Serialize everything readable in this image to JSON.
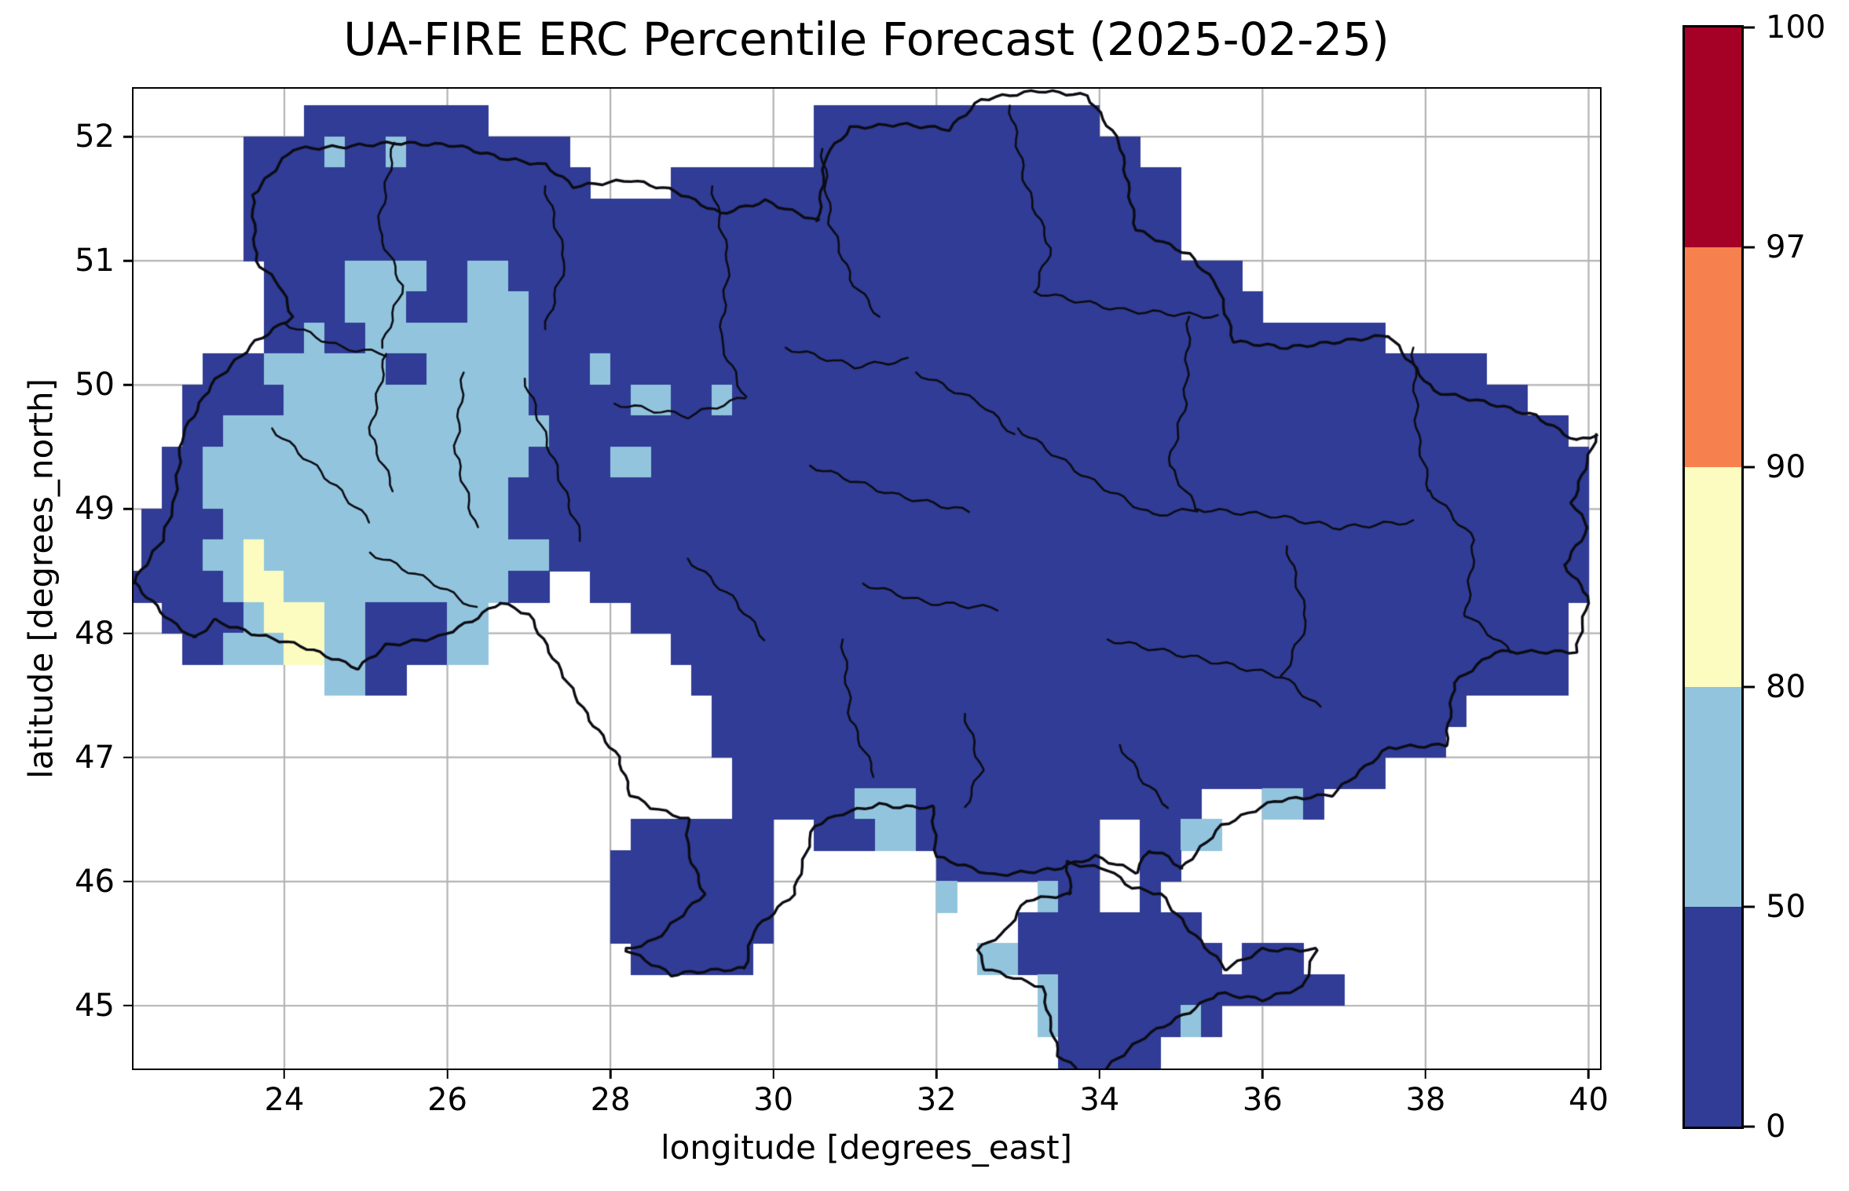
{
  "title": "UA-FIRE ERC Percentile Forecast (2025-02-25)",
  "axes": {
    "xlabel": "longitude [degrees_east]",
    "ylabel": "latitude [degrees_north]",
    "x_tick_labels": [
      "24",
      "26",
      "28",
      "30",
      "32",
      "34",
      "36",
      "38",
      "40"
    ],
    "y_tick_labels": [
      "45",
      "46",
      "47",
      "48",
      "49",
      "50",
      "51",
      "52"
    ]
  },
  "style": {
    "grid_color": "#b3b3b3",
    "border_color": "#0c0c14",
    "background": "#ffffff",
    "cell_colors": {
      "b": "#303c95",
      "c": "#92c5dd",
      "y": "#fcfcc0"
    }
  },
  "chart_data": {
    "type": "heatmap",
    "title": "UA-FIRE ERC Percentile Forecast (2025-02-25)",
    "xlabel": "longitude [degrees_east]",
    "ylabel": "latitude [degrees_north]",
    "x_ticks": [
      24,
      26,
      28,
      30,
      32,
      34,
      36,
      38,
      40
    ],
    "y_ticks": [
      45,
      46,
      47,
      48,
      49,
      50,
      51,
      52
    ],
    "lon_range": [
      22.15,
      40.14
    ],
    "lat_range": [
      44.494,
      52.386
    ],
    "grid_on": true,
    "legend_position": "right-colorbar",
    "colorbar": {
      "levels": [
        0,
        50,
        80,
        90,
        97,
        100
      ],
      "tick_labels": [
        "0",
        "50",
        "80",
        "90",
        "97",
        "100"
      ],
      "colors": [
        "#303c95",
        "#92c5dd",
        "#fcfcc0",
        "#f6804e",
        "#a50026"
      ],
      "bin_meaning": "ERC percentile classes: 0-50 dark blue, 50-80 light blue, 80-90 pale yellow, 90-97 orange, 97-100 dark red"
    },
    "raster": {
      "lon0": 22.0,
      "lat_top": 52.25,
      "cell_deg": 0.25,
      "value_key": {
        ".": null,
        "b": "0-50",
        "c": "50-80",
        "y": "80-90"
      },
      "rows": [
        ".........bbbbbbbbb................bbbbbbbbbbbbbb.........................",
        "......bbbbcbbcbbbbbbbb............bbbbbbbbbbbbbbbb.......................",
        "......bbbbbbbbbbbbbbbbb....bbbbbbbbbbbbbbbbbbbbbbbbb.....................",
        "......bbbbbbbbbbbbbbbbbbbbbbbbbbbbbbbbbbbbbbbbbbbbbb....................",
        "......bbbbbbbbbbbbbbbbbbbbbbbbbbbbbbbbbbbbbbbbbbbbbb....................",
        ".......bbbbccccbbccbbbbbbbbbbbbbbbbbbbbbbbbbbbbbbbbbbbb.................",
        ".......bbbbcccbbbcccbbbbbbbbbbbbbbbbbbbbbbbbbbbbbbbbbbbb................",
        ".......bbcbbccccccccbbbbbbbbbbbbbbbbbbbbbbbbbbbbbbbbbbbbbbbbbb...........",
        "....bbbccccccbbcccccbbbcbbbbbbbbbbbbbbbbbbbbbbbbbbbbbbbbbbbbbbbbbbb......",
        "...bbbbbccccccccccccbbbbbccbbcbbbbbbbbbbbbbbbbbbbbbbbbbbbbbbbbbbbbbbb...",
        "...bbccccccccccccccccbbbbbbbbbbbbbbbbbbbbbbbbbbbbbbbbbbbbbbbbbbbbbbbbbb.",
        "..bbccccccccccccccccbbbbccbbbbbbbbbbbbbbbbbbbbbbbbbbbbbbbbbbbbbbbbbbbbbb",
        "..bbcccccccccccccccbbbbbbbbbbbbbbbbbbbbbbbbbbbbbbbbbbbbbbbbbbbbbbbbbbbbb",
        ".bbbbccccccccccccccbbbbbbbbbbbbbbbbbbbbbbbbbbbbbbbbbbbbbbbbbbbbbbbbbbbbb",
        ".bbbccyccccccccccccccbbbbbbbbbbbbbbbbbbbbbbbbbbbbbbbbbbbbbbbbbbbbbbbbbbb",
        "bbbbbcyycccccccccccbb..bbbbbbbbbbbbbbbbbbbbbbbbbbbbbbbbbbbbbbbbbbbbbbbbb",
        "..bbbbcyyyccbbbbcc.......bbbbbbbbbbbbbbbbbbbbbbbbbbbbbbbbbbbbbbbbbbbbbb.",
        "...bbcccyyccbbbbcc.........bbbbbbbbbbbbbbbbbbbbbbbbbbbbbbbbbbbbbbbbbbbb.",
        "..........ccbb..............bbbbbbbbbbbbbbbbbbbbbbbbbbbbbbbbbbbbbbbbbbb..",
        ".............................bbbbbbbbbbbbbbbbbbbbbbbbbbbbbbbbbbbbb.......",
        ".............................bbbbbbbbbbbbbbbbbbbbbbbbbbbbbbbbbbbb........",
        "..............................bbbbbbbbbbbbbbbbbbbbbbbbbbbbbbbb...........",
        "..............................bbbbbbcccbbbbbbbbbbbbbb...ccb..............",
        ".........................bbbbbbb..bbbccbbbbbbbbb..bbcc...................",
        "........................bbbbbbbb........bbbbbbbb..bb.....................",
        "........................bbbbbbbb........c....cbb..b......................",
        "........................bbbbbbbb............bbbbbbbbb....................",
        ".........................bbbbbb...........ccbbbbbbbbbb.bbb...............",
        ".............................................cbbbbbbbbbbbbbb.............",
        ".............................................cbbbbbbcb...................",
        "..............................................bbbbb......................",
        "...............................................bbb......................."
      ]
    },
    "borders": {
      "country": [
        [
          23.61,
          51.53
        ],
        [
          24.1,
          51.9
        ],
        [
          24.75,
          51.92
        ],
        [
          25.35,
          51.95
        ],
        [
          26.1,
          51.93
        ],
        [
          26.65,
          51.83
        ],
        [
          27.2,
          51.77
        ],
        [
          27.55,
          51.6
        ],
        [
          28.25,
          51.65
        ],
        [
          28.8,
          51.56
        ],
        [
          29.35,
          51.38
        ],
        [
          29.9,
          51.48
        ],
        [
          30.55,
          51.32
        ],
        [
          30.64,
          51.85
        ],
        [
          30.95,
          52.07
        ],
        [
          31.55,
          52.1
        ],
        [
          32.15,
          52.06
        ],
        [
          32.55,
          52.3
        ],
        [
          33.25,
          52.37
        ],
        [
          33.85,
          52.33
        ],
        [
          34.25,
          51.95
        ],
        [
          34.45,
          51.25
        ],
        [
          35.1,
          51.05
        ],
        [
          35.45,
          50.8
        ],
        [
          35.65,
          50.35
        ],
        [
          36.3,
          50.3
        ],
        [
          36.95,
          50.35
        ],
        [
          37.55,
          50.4
        ],
        [
          38.1,
          49.95
        ],
        [
          38.8,
          49.85
        ],
        [
          39.35,
          49.75
        ],
        [
          39.85,
          49.55
        ],
        [
          40.1,
          49.6
        ],
        [
          39.8,
          49.05
        ],
        [
          40.0,
          48.85
        ],
        [
          39.7,
          48.55
        ],
        [
          40.0,
          48.3
        ],
        [
          39.85,
          47.85
        ],
        [
          39.3,
          47.85
        ],
        [
          38.85,
          47.85
        ],
        [
          38.35,
          47.6
        ],
        [
          38.25,
          47.1
        ],
        [
          37.55,
          47.08
        ],
        [
          36.85,
          46.7
        ],
        [
          36.15,
          46.65
        ],
        [
          35.5,
          46.45
        ],
        [
          35.0,
          46.1
        ],
        [
          34.85,
          46.2
        ],
        [
          34.6,
          46.25
        ],
        [
          34.45,
          46.08
        ],
        [
          33.95,
          46.2
        ],
        [
          33.45,
          46.1
        ],
        [
          32.7,
          46.05
        ],
        [
          32.0,
          46.2
        ],
        [
          31.95,
          46.6
        ],
        [
          31.55,
          46.6
        ],
        [
          31.3,
          46.62
        ],
        [
          30.85,
          46.55
        ],
        [
          30.5,
          46.45
        ],
        [
          30.25,
          45.9
        ],
        [
          29.75,
          45.6
        ],
        [
          29.65,
          45.3
        ],
        [
          29.15,
          45.28
        ],
        [
          28.75,
          45.25
        ],
        [
          28.2,
          45.45
        ],
        [
          28.55,
          45.53
        ],
        [
          29.15,
          45.9
        ],
        [
          28.95,
          46.25
        ],
        [
          28.95,
          46.5
        ],
        [
          28.5,
          46.6
        ],
        [
          28.25,
          46.7
        ],
        [
          28.1,
          47.0
        ],
        [
          27.75,
          47.3
        ],
        [
          27.3,
          47.8
        ],
        [
          27.0,
          48.15
        ],
        [
          26.65,
          48.25
        ],
        [
          26.3,
          48.1
        ],
        [
          25.9,
          47.97
        ],
        [
          25.25,
          47.9
        ],
        [
          24.9,
          47.72
        ],
        [
          24.2,
          47.9
        ],
        [
          23.6,
          48.0
        ],
        [
          23.15,
          48.1
        ],
        [
          22.9,
          47.96
        ],
        [
          22.6,
          48.1
        ],
        [
          22.15,
          48.41
        ],
        [
          22.5,
          48.75
        ],
        [
          22.65,
          49.05
        ],
        [
          22.75,
          49.6
        ],
        [
          23.1,
          50.0
        ],
        [
          23.65,
          50.35
        ],
        [
          24.1,
          50.55
        ],
        [
          23.95,
          50.8
        ],
        [
          23.65,
          51.0
        ],
        [
          23.61,
          51.53
        ]
      ],
      "crimea": [
        [
          33.6,
          46.15
        ],
        [
          33.65,
          45.9
        ],
        [
          33.1,
          45.85
        ],
        [
          32.85,
          45.6
        ],
        [
          32.5,
          45.45
        ],
        [
          32.6,
          45.3
        ],
        [
          33.3,
          45.15
        ],
        [
          33.4,
          44.85
        ],
        [
          33.5,
          44.6
        ],
        [
          33.9,
          44.4
        ],
        [
          34.55,
          44.75
        ],
        [
          35.1,
          44.95
        ],
        [
          35.45,
          45.1
        ],
        [
          36.0,
          45.05
        ],
        [
          36.5,
          45.15
        ],
        [
          36.65,
          45.45
        ],
        [
          36.0,
          45.45
        ],
        [
          35.55,
          45.3
        ],
        [
          35.05,
          45.65
        ],
        [
          34.75,
          45.9
        ],
        [
          34.4,
          45.95
        ],
        [
          34.1,
          46.1
        ],
        [
          33.6,
          46.15
        ]
      ],
      "admin": [
        [
          [
            25.35,
            51.95
          ],
          [
            25.15,
            51.25
          ],
          [
            25.45,
            50.8
          ],
          [
            25.2,
            50.3
          ]
        ],
        [
          [
            27.2,
            51.6
          ],
          [
            27.45,
            51.0
          ],
          [
            27.2,
            50.45
          ]
        ],
        [
          [
            29.25,
            51.6
          ],
          [
            29.45,
            51.0
          ],
          [
            29.35,
            50.35
          ],
          [
            29.65,
            49.9
          ]
        ],
        [
          [
            30.6,
            51.9
          ],
          [
            30.7,
            51.3
          ],
          [
            30.95,
            50.85
          ],
          [
            31.3,
            50.55
          ]
        ],
        [
          [
            32.9,
            52.25
          ],
          [
            33.1,
            51.6
          ],
          [
            33.4,
            51.1
          ],
          [
            33.2,
            50.75
          ]
        ],
        [
          [
            33.2,
            50.75
          ],
          [
            34.3,
            50.6
          ],
          [
            35.45,
            50.55
          ]
        ],
        [
          [
            35.1,
            50.55
          ],
          [
            35.05,
            49.85
          ],
          [
            34.85,
            49.35
          ],
          [
            35.2,
            49.0
          ]
        ],
        [
          [
            37.85,
            50.3
          ],
          [
            37.9,
            49.6
          ],
          [
            38.05,
            49.15
          ]
        ],
        [
          [
            38.05,
            49.15
          ],
          [
            38.6,
            48.75
          ],
          [
            38.5,
            48.15
          ],
          [
            39.05,
            47.85
          ]
        ],
        [
          [
            33.0,
            49.65
          ],
          [
            33.85,
            49.25
          ],
          [
            34.65,
            48.95
          ],
          [
            35.2,
            49.0
          ]
        ],
        [
          [
            30.45,
            49.35
          ],
          [
            31.45,
            49.12
          ],
          [
            32.4,
            48.98
          ]
        ],
        [
          [
            26.95,
            50.05
          ],
          [
            27.3,
            49.4
          ],
          [
            27.65,
            48.75
          ]
        ],
        [
          [
            26.2,
            50.1
          ],
          [
            26.1,
            49.45
          ],
          [
            26.35,
            48.85
          ]
        ],
        [
          [
            25.25,
            50.25
          ],
          [
            25.05,
            49.6
          ],
          [
            25.35,
            49.15
          ]
        ],
        [
          [
            23.85,
            49.65
          ],
          [
            24.45,
            49.3
          ],
          [
            25.05,
            48.9
          ]
        ],
        [
          [
            25.05,
            48.65
          ],
          [
            25.85,
            48.4
          ],
          [
            26.35,
            48.2
          ]
        ],
        [
          [
            30.85,
            47.95
          ],
          [
            30.95,
            47.3
          ],
          [
            31.25,
            46.85
          ]
        ],
        [
          [
            32.35,
            47.35
          ],
          [
            32.55,
            46.9
          ],
          [
            32.35,
            46.6
          ]
        ],
        [
          [
            34.1,
            47.95
          ],
          [
            35.2,
            47.8
          ],
          [
            36.25,
            47.65
          ],
          [
            36.7,
            47.4
          ]
        ],
        [
          [
            36.3,
            48.7
          ],
          [
            36.55,
            48.1
          ],
          [
            36.25,
            47.65
          ]
        ],
        [
          [
            34.25,
            47.1
          ],
          [
            34.55,
            46.8
          ],
          [
            34.85,
            46.6
          ]
        ],
        [
          [
            31.75,
            50.1
          ],
          [
            32.55,
            49.85
          ],
          [
            32.95,
            49.6
          ]
        ],
        [
          [
            30.15,
            50.3
          ],
          [
            31.0,
            50.15
          ],
          [
            31.65,
            50.2
          ]
        ],
        [
          [
            28.05,
            49.85
          ],
          [
            28.95,
            49.75
          ],
          [
            29.65,
            49.9
          ]
        ],
        [
          [
            24.0,
            50.5
          ],
          [
            24.7,
            50.3
          ],
          [
            25.25,
            50.25
          ]
        ],
        [
          [
            28.95,
            48.6
          ],
          [
            29.55,
            48.25
          ],
          [
            29.9,
            47.95
          ]
        ],
        [
          [
            31.1,
            48.4
          ],
          [
            31.85,
            48.25
          ],
          [
            32.75,
            48.2
          ]
        ],
        [
          [
            35.2,
            49.0
          ],
          [
            36.1,
            48.95
          ],
          [
            36.95,
            48.85
          ],
          [
            37.85,
            48.9
          ]
        ]
      ]
    }
  }
}
